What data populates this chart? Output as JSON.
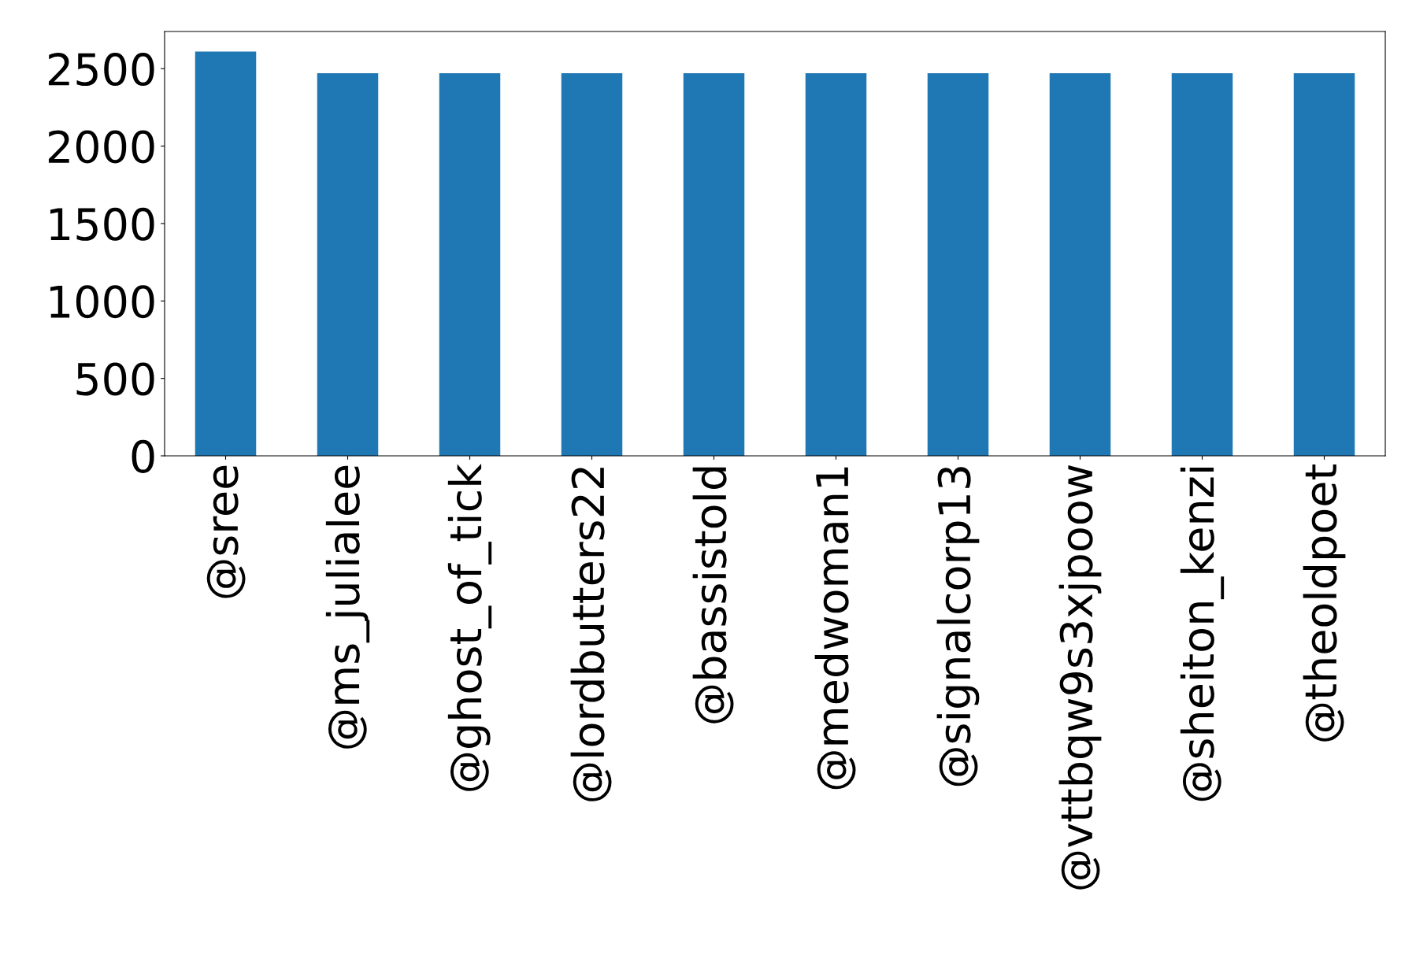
{
  "chart_data": {
    "type": "bar",
    "categories": [
      "@sree",
      "@ms_julialee",
      "@ghost_of_tick",
      "@lordbutters22",
      "@bassistold",
      "@medwoman1",
      "@signalcorp13",
      "@vttbqw9s3xjpoow",
      "@sheiton_kenzi",
      "@theoldpoet"
    ],
    "values": [
      2610,
      2470,
      2470,
      2470,
      2470,
      2470,
      2470,
      2470,
      2470,
      2470
    ],
    "color": "#1f77b4",
    "ylim": [
      0,
      2740
    ],
    "yticks": [
      0,
      500,
      1000,
      1500,
      2000,
      2500
    ],
    "grid": false,
    "legend": false
  }
}
